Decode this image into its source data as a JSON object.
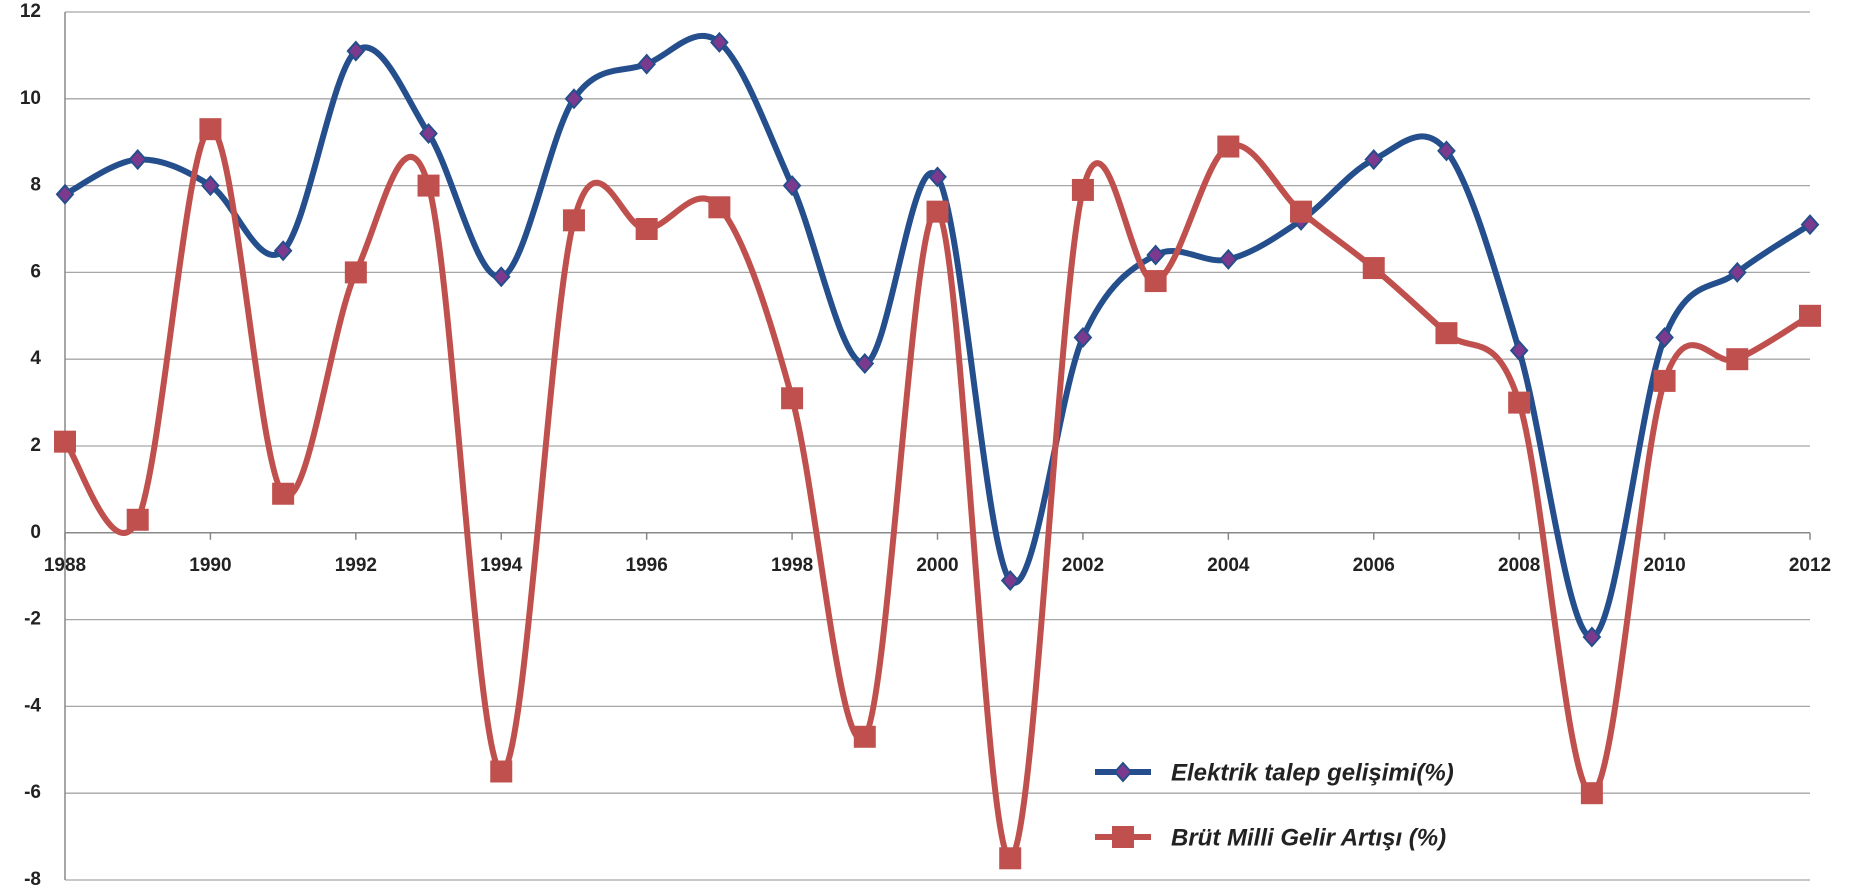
{
  "chart_data": {
    "type": "line",
    "x": [
      1988,
      1989,
      1990,
      1991,
      1992,
      1993,
      1994,
      1995,
      1996,
      1997,
      1998,
      1999,
      2000,
      2001,
      2002,
      2003,
      2004,
      2005,
      2006,
      2007,
      2008,
      2009,
      2010,
      2011,
      2012
    ],
    "series": [
      {
        "name": "Elektrik talep gelişimi(%)",
        "color": "#254e8c",
        "marker": "diamond",
        "values": [
          7.8,
          8.6,
          8.0,
          6.5,
          11.1,
          9.2,
          5.9,
          10.0,
          10.8,
          11.3,
          8.0,
          3.9,
          8.2,
          -1.1,
          4.5,
          6.4,
          6.3,
          7.2,
          8.6,
          8.8,
          4.2,
          -2.4,
          4.5,
          6.0,
          7.1
        ]
      },
      {
        "name": "Brüt Milli Gelir Artışı (%)",
        "color": "#c0504d",
        "marker": "square",
        "values": [
          2.1,
          0.3,
          9.3,
          0.9,
          6.0,
          8.0,
          -5.5,
          7.2,
          7.0,
          7.5,
          3.1,
          -4.7,
          7.4,
          -7.5,
          7.9,
          5.8,
          8.9,
          7.4,
          6.1,
          4.6,
          3.0,
          -6.0,
          3.5,
          4.0,
          5.0
        ]
      }
    ],
    "xlim": [
      1988,
      2012
    ],
    "xticks": [
      1988,
      1990,
      1992,
      1994,
      1996,
      1998,
      2000,
      2002,
      2004,
      2006,
      2008,
      2010,
      2012
    ],
    "ylim": [
      -8,
      12
    ],
    "yticks": [
      -8,
      -6,
      -4,
      -2,
      0,
      2,
      4,
      6,
      8,
      10,
      12
    ],
    "grid": true,
    "smooth": true,
    "legend": "lower right"
  }
}
